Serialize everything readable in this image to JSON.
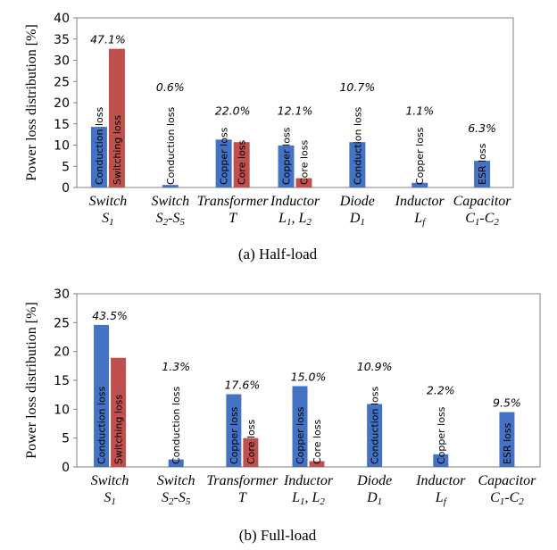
{
  "chart_data": [
    {
      "type": "bar",
      "title": "(a)  Half-load",
      "ylabel": "Power loss distribution [%]",
      "ylim": [
        0,
        40
      ],
      "yticks": [
        0,
        5,
        10,
        15,
        20,
        25,
        30,
        35,
        40
      ],
      "categories": [
        {
          "name": "Switch",
          "sub": [
            {
              "t": "S"
            },
            {
              "t": "1",
              "s": "sub"
            }
          ]
        },
        {
          "name": "Switch",
          "sub": [
            {
              "t": "S"
            },
            {
              "t": "2",
              "s": "sub"
            },
            {
              "t": "-S"
            },
            {
              "t": "5",
              "s": "sub"
            }
          ]
        },
        {
          "name": "Transformer",
          "sub": [
            {
              "t": "T"
            }
          ]
        },
        {
          "name": "Inductor",
          "sub": [
            {
              "t": "L"
            },
            {
              "t": "1",
              "s": "sub"
            },
            {
              "t": ", L"
            },
            {
              "t": "2",
              "s": "sub"
            }
          ]
        },
        {
          "name": "Diode",
          "sub": [
            {
              "t": "D"
            },
            {
              "t": "1",
              "s": "sub"
            }
          ]
        },
        {
          "name": "Inductor",
          "sub": [
            {
              "t": "L"
            },
            {
              "t": "f",
              "s": "sub"
            }
          ]
        },
        {
          "name": "Capacitor",
          "sub": [
            {
              "t": "C"
            },
            {
              "t": "1",
              "s": "sub"
            },
            {
              "t": "-C"
            },
            {
              "t": "2",
              "s": "sub"
            }
          ]
        }
      ],
      "percentages": [
        "47.1%",
        "0.6%",
        "22.0%",
        "12.1%",
        "10.7%",
        "1.1%",
        "6.3%"
      ],
      "bars": [
        [
          {
            "label": "Conduction loss",
            "value": 14.3,
            "color": "#4472c4"
          },
          {
            "label": "Switching loss",
            "value": 32.7,
            "color": "#c0504d"
          }
        ],
        [
          {
            "label": "Conduction loss",
            "value": 0.6,
            "color": "#4472c4"
          }
        ],
        [
          {
            "label": "Copper loss",
            "value": 11.3,
            "color": "#4472c4"
          },
          {
            "label": "Core loss",
            "value": 10.7,
            "color": "#c0504d"
          }
        ],
        [
          {
            "label": "Copper loss",
            "value": 9.9,
            "color": "#4472c4"
          },
          {
            "label": "Core loss",
            "value": 2.2,
            "color": "#c0504d"
          }
        ],
        [
          {
            "label": "Conduction loss",
            "value": 10.7,
            "color": "#4472c4"
          }
        ],
        [
          {
            "label": "Copper loss",
            "value": 1.1,
            "color": "#4472c4"
          }
        ],
        [
          {
            "label": "ESR loss",
            "value": 6.3,
            "color": "#4472c4"
          }
        ]
      ]
    },
    {
      "type": "bar",
      "title": "(b)  Full-load",
      "ylabel": "Power loss distribution [%]",
      "ylim": [
        0,
        30
      ],
      "yticks": [
        0,
        5,
        10,
        15,
        20,
        25,
        30
      ],
      "categories": [
        {
          "name": "Switch",
          "sub": [
            {
              "t": "S"
            },
            {
              "t": "1",
              "s": "sub"
            }
          ]
        },
        {
          "name": "Switch",
          "sub": [
            {
              "t": "S"
            },
            {
              "t": "2",
              "s": "sub"
            },
            {
              "t": "-S"
            },
            {
              "t": "5",
              "s": "sub"
            }
          ]
        },
        {
          "name": "Transformer",
          "sub": [
            {
              "t": "T"
            }
          ]
        },
        {
          "name": "Inductor",
          "sub": [
            {
              "t": "L"
            },
            {
              "t": "1",
              "s": "sub"
            },
            {
              "t": ", L"
            },
            {
              "t": "2",
              "s": "sub"
            }
          ]
        },
        {
          "name": "Diode",
          "sub": [
            {
              "t": "D"
            },
            {
              "t": "1",
              "s": "sub"
            }
          ]
        },
        {
          "name": "Inductor",
          "sub": [
            {
              "t": "L"
            },
            {
              "t": "f",
              "s": "sub"
            }
          ]
        },
        {
          "name": "Capacitor",
          "sub": [
            {
              "t": "C"
            },
            {
              "t": "1",
              "s": "sub"
            },
            {
              "t": "-C"
            },
            {
              "t": "2",
              "s": "sub"
            }
          ]
        }
      ],
      "percentages": [
        "43.5%",
        "1.3%",
        "17.6%",
        "15.0%",
        "10.9%",
        "2.2%",
        "9.5%"
      ],
      "bars": [
        [
          {
            "label": "Conduction loss",
            "value": 24.6,
            "color": "#4472c4"
          },
          {
            "label": "Switching loss",
            "value": 18.9,
            "color": "#c0504d"
          }
        ],
        [
          {
            "label": "Conduction loss",
            "value": 1.3,
            "color": "#4472c4"
          }
        ],
        [
          {
            "label": "Copper loss",
            "value": 12.6,
            "color": "#4472c4"
          },
          {
            "label": "Core loss",
            "value": 5.0,
            "color": "#c0504d"
          }
        ],
        [
          {
            "label": "Copper loss",
            "value": 14.0,
            "color": "#4472c4"
          },
          {
            "label": "Core loss",
            "value": 1.0,
            "color": "#c0504d"
          }
        ],
        [
          {
            "label": "Conduction loss",
            "value": 10.9,
            "color": "#4472c4"
          }
        ],
        [
          {
            "label": "Copper loss",
            "value": 2.2,
            "color": "#4472c4"
          }
        ],
        [
          {
            "label": "ESR loss",
            "value": 9.5,
            "color": "#4472c4"
          }
        ]
      ]
    }
  ]
}
